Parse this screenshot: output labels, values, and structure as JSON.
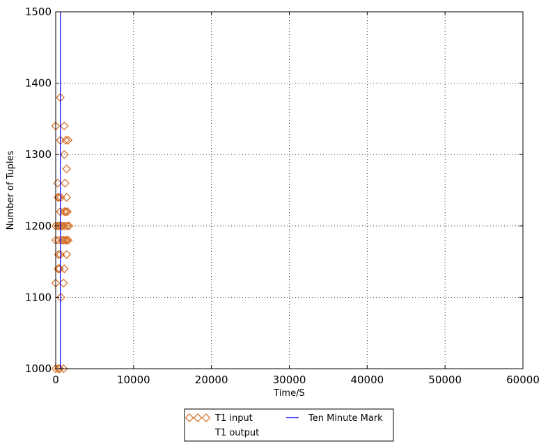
{
  "chart_data": {
    "type": "scatter",
    "xlabel": "Time/S",
    "ylabel": "Number of Tuples",
    "xlim": [
      0,
      60000
    ],
    "ylim": [
      1000,
      1500
    ],
    "x_ticks": [
      "0",
      "10000",
      "20000",
      "30000",
      "40000",
      "50000",
      "60000"
    ],
    "y_ticks": [
      "1000",
      "1100",
      "1200",
      "1300",
      "1400",
      "1500"
    ],
    "grid": true,
    "grid_style": "dotted",
    "legend_position": "below-center",
    "series": [
      {
        "name": "T1 input",
        "marker": "diamond",
        "color": "#d2691e",
        "points": [
          [
            0,
            1340
          ],
          [
            0,
            1200
          ],
          [
            0,
            1180
          ],
          [
            0,
            1120
          ],
          [
            0,
            1000
          ],
          [
            250,
            1260
          ],
          [
            300,
            1240
          ],
          [
            300,
            1200
          ],
          [
            350,
            1180
          ],
          [
            350,
            1160
          ],
          [
            300,
            1140
          ],
          [
            350,
            1000
          ],
          [
            400,
            1240
          ],
          [
            450,
            1200
          ],
          [
            500,
            1140
          ],
          [
            500,
            1000
          ],
          [
            600,
            1380
          ],
          [
            600,
            1320
          ],
          [
            600,
            1220
          ],
          [
            600,
            1160
          ],
          [
            650,
            1240
          ],
          [
            650,
            1100
          ],
          [
            700,
            1200
          ],
          [
            800,
            1180
          ],
          [
            900,
            1200
          ],
          [
            1000,
            1180
          ],
          [
            1000,
            1120
          ],
          [
            1000,
            1000
          ],
          [
            1100,
            1340
          ],
          [
            1100,
            1300
          ],
          [
            1100,
            1220
          ],
          [
            1100,
            1140
          ],
          [
            1200,
            1260
          ],
          [
            1200,
            1200
          ],
          [
            1250,
            1180
          ],
          [
            1300,
            1320
          ],
          [
            1300,
            1220
          ],
          [
            1400,
            1280
          ],
          [
            1400,
            1240
          ],
          [
            1400,
            1180
          ],
          [
            1400,
            1160
          ],
          [
            1500,
            1220
          ],
          [
            1500,
            1200
          ],
          [
            1600,
            1320
          ],
          [
            1600,
            1180
          ],
          [
            1700,
            1200
          ]
        ]
      },
      {
        "name": "T1 output",
        "marker": "none",
        "color": "#ffffff",
        "points": []
      },
      {
        "name": "Ten Minute Mark",
        "type": "vline",
        "x": 600,
        "color": "#0000ff"
      }
    ]
  }
}
